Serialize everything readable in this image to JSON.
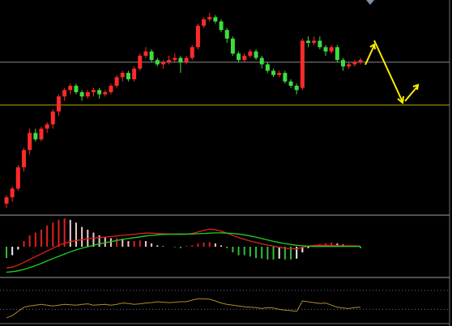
{
  "chart_data": {
    "type": "candlestick",
    "colors": {
      "up": "#ff2a2a",
      "down": "#3fdc3f"
    },
    "ylim": [
      0,
      100
    ],
    "candles": [
      [
        5,
        9,
        3,
        8
      ],
      [
        8,
        13,
        6,
        12
      ],
      [
        12,
        23,
        11,
        22
      ],
      [
        22,
        31,
        20,
        30
      ],
      [
        30,
        40,
        28,
        38
      ],
      [
        38,
        40,
        34,
        35
      ],
      [
        35,
        41,
        34,
        40
      ],
      [
        40,
        43,
        38,
        42
      ],
      [
        42,
        49,
        40,
        48
      ],
      [
        48,
        56,
        46,
        55
      ],
      [
        55,
        59,
        53,
        58
      ],
      [
        58,
        61,
        56,
        60
      ],
      [
        60,
        61,
        56,
        57
      ],
      [
        57,
        58,
        53,
        55
      ],
      [
        55,
        58,
        54,
        57
      ],
      [
        57,
        59,
        55,
        58
      ],
      [
        58,
        59,
        54,
        56
      ],
      [
        56,
        58,
        55,
        57
      ],
      [
        57,
        61,
        56,
        60
      ],
      [
        60,
        65,
        59,
        64
      ],
      [
        64,
        67,
        62,
        66
      ],
      [
        66,
        67,
        62,
        63
      ],
      [
        63,
        69,
        62,
        68
      ],
      [
        68,
        75,
        67,
        74
      ],
      [
        74,
        78,
        73,
        76
      ],
      [
        76,
        77,
        71,
        72
      ],
      [
        72,
        73,
        69,
        70
      ],
      [
        70,
        72,
        68,
        71
      ],
      [
        71,
        74,
        70,
        72
      ],
      [
        72,
        75,
        71,
        73
      ],
      [
        73,
        74,
        66,
        71
      ],
      [
        71,
        74,
        70,
        73
      ],
      [
        73,
        79,
        72,
        78
      ],
      [
        78,
        89,
        77,
        88
      ],
      [
        88,
        92,
        87,
        91
      ],
      [
        91,
        94,
        90,
        92
      ],
      [
        92,
        93,
        89,
        90
      ],
      [
        90,
        91,
        85,
        86
      ],
      [
        86,
        87,
        80,
        82
      ],
      [
        82,
        83,
        74,
        75
      ],
      [
        75,
        76,
        71,
        72
      ],
      [
        72,
        75,
        71,
        74
      ],
      [
        74,
        77,
        73,
        76
      ],
      [
        76,
        77,
        72,
        73
      ],
      [
        73,
        74,
        68,
        70
      ],
      [
        70,
        71,
        66,
        67
      ],
      [
        67,
        68,
        64,
        65
      ],
      [
        65,
        67,
        64,
        66
      ],
      [
        66,
        67,
        61,
        62
      ],
      [
        62,
        63,
        59,
        60
      ],
      [
        60,
        61,
        56,
        58
      ],
      [
        59,
        82,
        58,
        81
      ],
      [
        81,
        83,
        78,
        80
      ],
      [
        80,
        83,
        79,
        81
      ],
      [
        81,
        83,
        77,
        78
      ],
      [
        78,
        79,
        74,
        76
      ],
      [
        76,
        79,
        75,
        78
      ],
      [
        78,
        79,
        71,
        72
      ],
      [
        72,
        73,
        67,
        69
      ],
      [
        69,
        71,
        68,
        70
      ],
      [
        70,
        72,
        69,
        71
      ],
      [
        71,
        73,
        70,
        72
      ]
    ],
    "levels": [
      {
        "value": 71,
        "color": "#8a8a8a"
      },
      {
        "value": 51,
        "color": "#b8a800"
      }
    ],
    "macd": {
      "ylim": [
        -1,
        1
      ],
      "colors": {
        "pos_rising": "#e02020",
        "pos_falling": "#f0c8c8",
        "neg_falling": "#30c030",
        "neg_rising": "#f0f0f0",
        "dif": "#e02020",
        "dea": "#20d020"
      },
      "hist": [
        -0.4,
        -0.3,
        -0.1,
        0.2,
        0.4,
        0.5,
        0.6,
        0.75,
        0.85,
        0.95,
        1.0,
        0.95,
        0.85,
        0.7,
        0.6,
        0.5,
        0.4,
        0.35,
        0.3,
        0.3,
        0.28,
        0.2,
        0.2,
        0.22,
        0.2,
        0.12,
        0.05,
        0.02,
        0,
        -0.02,
        -0.05,
        0.02,
        0.05,
        0.12,
        0.15,
        0.16,
        0.12,
        0.05,
        -0.05,
        -0.2,
        -0.3,
        -0.3,
        -0.35,
        -0.4,
        -0.42,
        -0.45,
        -0.45,
        -0.42,
        -0.45,
        -0.45,
        -0.42,
        -0.2,
        -0.05,
        0.05,
        0.1,
        0.12,
        0.15,
        0.12,
        0.08,
        0.02,
        0,
        -0.05
      ],
      "dif": [
        -0.75,
        -0.72,
        -0.65,
        -0.55,
        -0.45,
        -0.35,
        -0.25,
        -0.15,
        -0.05,
        0.05,
        0.12,
        0.18,
        0.22,
        0.25,
        0.28,
        0.3,
        0.32,
        0.34,
        0.36,
        0.38,
        0.4,
        0.42,
        0.44,
        0.46,
        0.48,
        0.48,
        0.47,
        0.46,
        0.45,
        0.44,
        0.43,
        0.44,
        0.47,
        0.52,
        0.58,
        0.62,
        0.6,
        0.55,
        0.48,
        0.4,
        0.32,
        0.26,
        0.2,
        0.15,
        0.1,
        0.06,
        0.02,
        -0.02,
        -0.05,
        -0.07,
        -0.08,
        -0.02,
        0.02,
        0.05,
        0.05,
        0.05,
        0.04,
        0.04,
        0.03,
        0.03,
        0.03,
        0.02
      ],
      "dea": [
        -0.9,
        -0.88,
        -0.85,
        -0.8,
        -0.74,
        -0.67,
        -0.59,
        -0.5,
        -0.42,
        -0.34,
        -0.26,
        -0.18,
        -0.11,
        -0.05,
        0,
        0.05,
        0.1,
        0.14,
        0.18,
        0.22,
        0.26,
        0.29,
        0.32,
        0.35,
        0.38,
        0.4,
        0.42,
        0.43,
        0.44,
        0.45,
        0.45,
        0.45,
        0.45,
        0.46,
        0.47,
        0.48,
        0.49,
        0.49,
        0.48,
        0.47,
        0.45,
        0.42,
        0.38,
        0.34,
        0.29,
        0.24,
        0.19,
        0.15,
        0.11,
        0.08,
        0.05,
        0.03,
        0.02,
        0.01,
        0.01,
        0.01,
        0.01,
        0.01,
        0.01,
        0.01,
        0.01,
        0.01
      ]
    },
    "oscillator": {
      "ylim": [
        0,
        100
      ],
      "color": "#b08a30",
      "levels": [
        75,
        30
      ],
      "values": [
        10,
        15,
        25,
        35,
        38,
        40,
        42,
        40,
        38,
        40,
        42,
        41,
        40,
        42,
        43,
        40,
        41,
        42,
        40,
        42,
        45,
        44,
        42,
        43,
        45,
        46,
        48,
        47,
        46,
        47,
        48,
        48,
        52,
        55,
        55,
        54,
        50,
        45,
        42,
        40,
        38,
        36,
        35,
        34,
        32,
        34,
        33,
        30,
        28,
        27,
        25,
        50,
        48,
        46,
        44,
        45,
        40,
        35,
        33,
        32,
        34,
        35
      ]
    }
  }
}
